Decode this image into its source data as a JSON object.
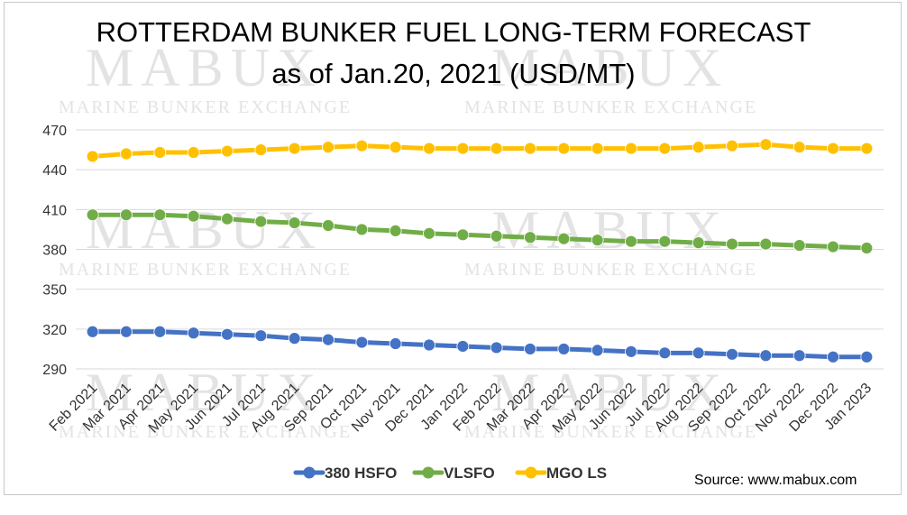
{
  "title_line1": "ROTTERDAM BUNKER FUEL LONG-TERM FORECAST",
  "title_line2": "as of Jan.20, 2021 (USD/MT)",
  "source": "Source: www.mabux.com",
  "watermark": {
    "brand": "MABUX",
    "tagline": "Marine Bunker Exchange"
  },
  "colors": {
    "hsfo": "#4472C4",
    "vlsfo": "#70AD47",
    "mgo": "#FFC000",
    "grid": "#d9d9d9"
  },
  "chart_data": {
    "type": "line",
    "title": "ROTTERDAM BUNKER FUEL LONG-TERM FORECAST as of Jan.20, 2021 (USD/MT)",
    "categories": [
      "Feb 2021",
      "Mar 2021",
      "Apr 2021",
      "May 2021",
      "Jun 2021",
      "Jul 2021",
      "Aug 2021",
      "Sep 2021",
      "Oct 2021",
      "Nov 2021",
      "Dec 2021",
      "Jan 2022",
      "Feb 2022",
      "Mar 2022",
      "Apr 2022",
      "May 2022",
      "Jun 2022",
      "Jul 2022",
      "Aug 2022",
      "Sep 2022",
      "Oct 2022",
      "Nov 2022",
      "Dec 2022",
      "Jan 2023"
    ],
    "ylim": [
      290,
      470
    ],
    "yticks": [
      290,
      320,
      350,
      380,
      410,
      440,
      470
    ],
    "grid": true,
    "legend_position": "bottom",
    "series": [
      {
        "name": "380 HSFO",
        "color": "#4472C4",
        "values": [
          318,
          318,
          318,
          317,
          316,
          315,
          313,
          312,
          310,
          309,
          308,
          307,
          306,
          305,
          305,
          304,
          303,
          302,
          302,
          301,
          300,
          300,
          299,
          299
        ]
      },
      {
        "name": "VLSFO",
        "color": "#70AD47",
        "values": [
          406,
          406,
          406,
          405,
          403,
          401,
          400,
          398,
          395,
          394,
          392,
          391,
          390,
          389,
          388,
          387,
          386,
          386,
          385,
          384,
          384,
          383,
          382,
          381
        ]
      },
      {
        "name": "MGO LS",
        "color": "#FFC000",
        "values": [
          450,
          452,
          453,
          453,
          454,
          455,
          456,
          457,
          458,
          457,
          456,
          456,
          456,
          456,
          456,
          456,
          456,
          456,
          457,
          458,
          459,
          457,
          456,
          456
        ]
      }
    ]
  }
}
